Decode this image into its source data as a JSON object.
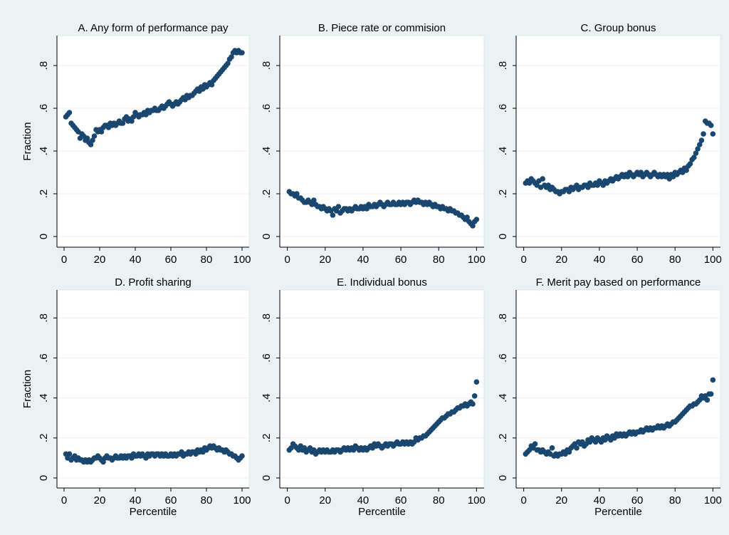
{
  "chart_data": [
    {
      "type": "scatter",
      "title": "A. Any form of performance pay",
      "ylabel": "Fraction",
      "color": "#1a476f",
      "grid": true,
      "xlim": [
        -4,
        104
      ],
      "ylim": [
        -0.05,
        0.94
      ],
      "xticks": [
        0,
        20,
        40,
        60,
        80,
        100
      ],
      "yticks": [
        0,
        {
          "value": 0.2,
          "label": ".2"
        },
        {
          "value": 0.4,
          "label": ".4"
        },
        {
          "value": 0.6,
          "label": ".6"
        },
        {
          "value": 0.8,
          "label": ".8"
        }
      ],
      "x": [
        1,
        2,
        3,
        4,
        5,
        6,
        7,
        8,
        9,
        10,
        11,
        12,
        13,
        14,
        15,
        16,
        17,
        18,
        19,
        20,
        21,
        22,
        23,
        24,
        25,
        26,
        27,
        28,
        29,
        30,
        31,
        32,
        33,
        34,
        35,
        36,
        37,
        38,
        39,
        40,
        41,
        42,
        43,
        44,
        45,
        46,
        47,
        48,
        49,
        50,
        51,
        52,
        53,
        54,
        55,
        56,
        57,
        58,
        59,
        60,
        61,
        62,
        63,
        64,
        65,
        66,
        67,
        68,
        69,
        70,
        71,
        72,
        73,
        74,
        75,
        76,
        77,
        78,
        79,
        80,
        81,
        82,
        83,
        84,
        85,
        86,
        87,
        88,
        89,
        90,
        91,
        92,
        93,
        94,
        95,
        96,
        97,
        98,
        99,
        100
      ],
      "values": [
        0.56,
        0.57,
        0.58,
        0.53,
        0.52,
        0.51,
        0.5,
        0.49,
        0.46,
        0.48,
        0.47,
        0.45,
        0.46,
        0.44,
        0.43,
        0.45,
        0.47,
        0.5,
        0.49,
        0.5,
        0.49,
        0.51,
        0.52,
        0.52,
        0.51,
        0.53,
        0.52,
        0.53,
        0.52,
        0.53,
        0.54,
        0.53,
        0.53,
        0.55,
        0.56,
        0.54,
        0.55,
        0.54,
        0.56,
        0.58,
        0.57,
        0.56,
        0.57,
        0.57,
        0.58,
        0.57,
        0.59,
        0.58,
        0.59,
        0.59,
        0.6,
        0.59,
        0.59,
        0.6,
        0.61,
        0.6,
        0.61,
        0.62,
        0.63,
        0.62,
        0.61,
        0.62,
        0.63,
        0.62,
        0.63,
        0.64,
        0.65,
        0.64,
        0.66,
        0.65,
        0.66,
        0.66,
        0.67,
        0.68,
        0.69,
        0.68,
        0.7,
        0.69,
        0.71,
        0.7,
        0.71,
        0.72,
        0.71,
        0.73,
        0.74,
        0.75,
        0.76,
        0.77,
        0.78,
        0.79,
        0.8,
        0.81,
        0.83,
        0.84,
        0.86,
        0.87,
        0.86,
        0.87,
        0.86,
        0.86
      ]
    },
    {
      "type": "scatter",
      "title": "B. Piece rate or commision",
      "color": "#1a476f",
      "grid": true,
      "xlim": [
        -4,
        104
      ],
      "ylim": [
        -0.05,
        0.94
      ],
      "xticks": [
        0,
        20,
        40,
        60,
        80,
        100
      ],
      "yticks": [
        0,
        {
          "value": 0.2,
          "label": ".2"
        },
        {
          "value": 0.4,
          "label": ".4"
        },
        {
          "value": 0.6,
          "label": ".6"
        },
        {
          "value": 0.8,
          "label": ".8"
        }
      ],
      "x": [
        1,
        2,
        3,
        4,
        5,
        6,
        7,
        8,
        9,
        10,
        11,
        12,
        13,
        14,
        15,
        16,
        17,
        18,
        19,
        20,
        21,
        22,
        23,
        24,
        25,
        26,
        27,
        28,
        29,
        30,
        31,
        32,
        33,
        34,
        35,
        36,
        37,
        38,
        39,
        40,
        41,
        42,
        43,
        44,
        45,
        46,
        47,
        48,
        49,
        50,
        51,
        52,
        53,
        54,
        55,
        56,
        57,
        58,
        59,
        60,
        61,
        62,
        63,
        64,
        65,
        66,
        67,
        68,
        69,
        70,
        71,
        72,
        73,
        74,
        75,
        76,
        77,
        78,
        79,
        80,
        81,
        82,
        83,
        84,
        85,
        86,
        87,
        88,
        89,
        90,
        91,
        92,
        93,
        94,
        95,
        96,
        97,
        98,
        99,
        100
      ],
      "values": [
        0.21,
        0.2,
        0.2,
        0.19,
        0.2,
        0.18,
        0.18,
        0.17,
        0.16,
        0.16,
        0.17,
        0.16,
        0.15,
        0.17,
        0.15,
        0.14,
        0.14,
        0.13,
        0.14,
        0.13,
        0.12,
        0.13,
        0.12,
        0.1,
        0.13,
        0.12,
        0.14,
        0.11,
        0.12,
        0.13,
        0.13,
        0.12,
        0.13,
        0.12,
        0.13,
        0.14,
        0.13,
        0.13,
        0.14,
        0.13,
        0.14,
        0.13,
        0.15,
        0.14,
        0.14,
        0.15,
        0.14,
        0.15,
        0.16,
        0.15,
        0.14,
        0.15,
        0.16,
        0.15,
        0.15,
        0.16,
        0.15,
        0.15,
        0.16,
        0.15,
        0.16,
        0.15,
        0.16,
        0.16,
        0.15,
        0.16,
        0.17,
        0.16,
        0.17,
        0.16,
        0.16,
        0.15,
        0.16,
        0.15,
        0.16,
        0.15,
        0.14,
        0.15,
        0.14,
        0.14,
        0.13,
        0.14,
        0.13,
        0.13,
        0.12,
        0.13,
        0.12,
        0.12,
        0.11,
        0.11,
        0.1,
        0.1,
        0.09,
        0.08,
        0.09,
        0.07,
        0.06,
        0.05,
        0.07,
        0.08
      ]
    },
    {
      "type": "scatter",
      "title": "C. Group bonus",
      "color": "#1a476f",
      "grid": true,
      "xlim": [
        -4,
        104
      ],
      "ylim": [
        -0.05,
        0.94
      ],
      "xticks": [
        0,
        20,
        40,
        60,
        80,
        100
      ],
      "yticks": [
        0,
        {
          "value": 0.2,
          "label": ".2"
        },
        {
          "value": 0.4,
          "label": ".4"
        },
        {
          "value": 0.6,
          "label": ".6"
        },
        {
          "value": 0.8,
          "label": ".8"
        }
      ],
      "x": [
        1,
        2,
        3,
        4,
        5,
        6,
        7,
        8,
        9,
        10,
        11,
        12,
        13,
        14,
        15,
        16,
        17,
        18,
        19,
        20,
        21,
        22,
        23,
        24,
        25,
        26,
        27,
        28,
        29,
        30,
        31,
        32,
        33,
        34,
        35,
        36,
        37,
        38,
        39,
        40,
        41,
        42,
        43,
        44,
        45,
        46,
        47,
        48,
        49,
        50,
        51,
        52,
        53,
        54,
        55,
        56,
        57,
        58,
        59,
        60,
        61,
        62,
        63,
        64,
        65,
        66,
        67,
        68,
        69,
        70,
        71,
        72,
        73,
        74,
        75,
        76,
        77,
        78,
        79,
        80,
        81,
        82,
        83,
        84,
        85,
        86,
        87,
        88,
        89,
        90,
        91,
        92,
        93,
        94,
        95,
        96,
        97,
        98,
        99,
        100
      ],
      "values": [
        0.25,
        0.26,
        0.25,
        0.27,
        0.26,
        0.25,
        0.24,
        0.26,
        0.23,
        0.27,
        0.24,
        0.23,
        0.24,
        0.22,
        0.23,
        0.22,
        0.21,
        0.21,
        0.2,
        0.21,
        0.21,
        0.22,
        0.22,
        0.21,
        0.23,
        0.22,
        0.23,
        0.24,
        0.22,
        0.23,
        0.23,
        0.24,
        0.24,
        0.23,
        0.25,
        0.24,
        0.24,
        0.25,
        0.24,
        0.26,
        0.25,
        0.24,
        0.26,
        0.25,
        0.26,
        0.27,
        0.26,
        0.27,
        0.28,
        0.27,
        0.28,
        0.29,
        0.28,
        0.29,
        0.28,
        0.3,
        0.29,
        0.28,
        0.29,
        0.3,
        0.29,
        0.3,
        0.28,
        0.29,
        0.3,
        0.29,
        0.28,
        0.29,
        0.3,
        0.29,
        0.28,
        0.29,
        0.28,
        0.29,
        0.28,
        0.29,
        0.27,
        0.29,
        0.28,
        0.3,
        0.29,
        0.3,
        0.31,
        0.3,
        0.32,
        0.31,
        0.33,
        0.34,
        0.36,
        0.37,
        0.39,
        0.41,
        0.43,
        0.45,
        0.48,
        0.54,
        0.53,
        0.53,
        0.52,
        0.48
      ]
    },
    {
      "type": "scatter",
      "title": "D. Profit sharing",
      "xlabel": "Percentile",
      "ylabel": "Fraction",
      "color": "#1a476f",
      "grid": true,
      "xlim": [
        -4,
        104
      ],
      "ylim": [
        -0.05,
        0.94
      ],
      "xticks": [
        0,
        20,
        40,
        60,
        80,
        100
      ],
      "yticks": [
        0,
        {
          "value": 0.2,
          "label": ".2"
        },
        {
          "value": 0.4,
          "label": ".4"
        },
        {
          "value": 0.6,
          "label": ".6"
        },
        {
          "value": 0.8,
          "label": ".8"
        }
      ],
      "x": [
        1,
        2,
        3,
        4,
        5,
        6,
        7,
        8,
        9,
        10,
        11,
        12,
        13,
        14,
        15,
        16,
        17,
        18,
        19,
        20,
        21,
        22,
        23,
        24,
        25,
        26,
        27,
        28,
        29,
        30,
        31,
        32,
        33,
        34,
        35,
        36,
        37,
        38,
        39,
        40,
        41,
        42,
        43,
        44,
        45,
        46,
        47,
        48,
        49,
        50,
        51,
        52,
        53,
        54,
        55,
        56,
        57,
        58,
        59,
        60,
        61,
        62,
        63,
        64,
        65,
        66,
        67,
        68,
        69,
        70,
        71,
        72,
        73,
        74,
        75,
        76,
        77,
        78,
        79,
        80,
        81,
        82,
        83,
        84,
        85,
        86,
        87,
        88,
        89,
        90,
        91,
        92,
        93,
        94,
        95,
        96,
        97,
        98,
        99,
        100
      ],
      "values": [
        0.12,
        0.1,
        0.12,
        0.09,
        0.1,
        0.11,
        0.09,
        0.1,
        0.09,
        0.09,
        0.08,
        0.09,
        0.08,
        0.09,
        0.08,
        0.09,
        0.1,
        0.1,
        0.11,
        0.1,
        0.09,
        0.08,
        0.1,
        0.11,
        0.1,
        0.1,
        0.09,
        0.1,
        0.11,
        0.1,
        0.1,
        0.11,
        0.1,
        0.11,
        0.1,
        0.11,
        0.11,
        0.1,
        0.12,
        0.11,
        0.11,
        0.12,
        0.11,
        0.12,
        0.11,
        0.1,
        0.12,
        0.11,
        0.12,
        0.12,
        0.11,
        0.12,
        0.12,
        0.11,
        0.12,
        0.11,
        0.12,
        0.11,
        0.11,
        0.12,
        0.11,
        0.12,
        0.11,
        0.12,
        0.12,
        0.13,
        0.11,
        0.12,
        0.12,
        0.13,
        0.12,
        0.13,
        0.13,
        0.12,
        0.14,
        0.13,
        0.14,
        0.13,
        0.15,
        0.14,
        0.15,
        0.16,
        0.15,
        0.16,
        0.15,
        0.14,
        0.15,
        0.14,
        0.14,
        0.13,
        0.14,
        0.13,
        0.12,
        0.12,
        0.11,
        0.11,
        0.1,
        0.09,
        0.1,
        0.11
      ]
    },
    {
      "type": "scatter",
      "title": "E. Individual bonus",
      "xlabel": "Percentile",
      "color": "#1a476f",
      "grid": true,
      "xlim": [
        -4,
        104
      ],
      "ylim": [
        -0.05,
        0.94
      ],
      "xticks": [
        0,
        20,
        40,
        60,
        80,
        100
      ],
      "yticks": [
        0,
        {
          "value": 0.2,
          "label": ".2"
        },
        {
          "value": 0.4,
          "label": ".4"
        },
        {
          "value": 0.6,
          "label": ".6"
        },
        {
          "value": 0.8,
          "label": ".8"
        }
      ],
      "x": [
        1,
        2,
        3,
        4,
        5,
        6,
        7,
        8,
        9,
        10,
        11,
        12,
        13,
        14,
        15,
        16,
        17,
        18,
        19,
        20,
        21,
        22,
        23,
        24,
        25,
        26,
        27,
        28,
        29,
        30,
        31,
        32,
        33,
        34,
        35,
        36,
        37,
        38,
        39,
        40,
        41,
        42,
        43,
        44,
        45,
        46,
        47,
        48,
        49,
        50,
        51,
        52,
        53,
        54,
        55,
        56,
        57,
        58,
        59,
        60,
        61,
        62,
        63,
        64,
        65,
        66,
        67,
        68,
        69,
        70,
        71,
        72,
        73,
        74,
        75,
        76,
        77,
        78,
        79,
        80,
        81,
        82,
        83,
        84,
        85,
        86,
        87,
        88,
        89,
        90,
        91,
        92,
        93,
        94,
        95,
        96,
        97,
        98,
        99,
        100
      ],
      "values": [
        0.14,
        0.15,
        0.17,
        0.16,
        0.15,
        0.14,
        0.16,
        0.14,
        0.15,
        0.13,
        0.14,
        0.15,
        0.13,
        0.14,
        0.12,
        0.13,
        0.14,
        0.13,
        0.14,
        0.13,
        0.14,
        0.13,
        0.13,
        0.14,
        0.13,
        0.14,
        0.14,
        0.13,
        0.14,
        0.15,
        0.14,
        0.15,
        0.14,
        0.15,
        0.14,
        0.16,
        0.15,
        0.14,
        0.15,
        0.14,
        0.15,
        0.14,
        0.15,
        0.16,
        0.15,
        0.17,
        0.16,
        0.17,
        0.16,
        0.15,
        0.16,
        0.17,
        0.16,
        0.17,
        0.17,
        0.16,
        0.17,
        0.18,
        0.17,
        0.17,
        0.18,
        0.17,
        0.18,
        0.17,
        0.18,
        0.17,
        0.18,
        0.2,
        0.19,
        0.2,
        0.2,
        0.21,
        0.21,
        0.22,
        0.23,
        0.24,
        0.25,
        0.26,
        0.27,
        0.28,
        0.29,
        0.3,
        0.3,
        0.31,
        0.32,
        0.32,
        0.33,
        0.33,
        0.34,
        0.35,
        0.35,
        0.36,
        0.36,
        0.37,
        0.36,
        0.37,
        0.38,
        0.37,
        0.41,
        0.48
      ]
    },
    {
      "type": "scatter",
      "title": "F. Merit pay based on performance",
      "xlabel": "Percentile",
      "color": "#1a476f",
      "grid": true,
      "xlim": [
        -4,
        104
      ],
      "ylim": [
        -0.05,
        0.94
      ],
      "xticks": [
        0,
        20,
        40,
        60,
        80,
        100
      ],
      "yticks": [
        0,
        {
          "value": 0.2,
          "label": ".2"
        },
        {
          "value": 0.4,
          "label": ".4"
        },
        {
          "value": 0.6,
          "label": ".6"
        },
        {
          "value": 0.8,
          "label": ".8"
        }
      ],
      "x": [
        1,
        2,
        3,
        4,
        5,
        6,
        7,
        8,
        9,
        10,
        11,
        12,
        13,
        14,
        15,
        16,
        17,
        18,
        19,
        20,
        21,
        22,
        23,
        24,
        25,
        26,
        27,
        28,
        29,
        30,
        31,
        32,
        33,
        34,
        35,
        36,
        37,
        38,
        39,
        40,
        41,
        42,
        43,
        44,
        45,
        46,
        47,
        48,
        49,
        50,
        51,
        52,
        53,
        54,
        55,
        56,
        57,
        58,
        59,
        60,
        61,
        62,
        63,
        64,
        65,
        66,
        67,
        68,
        69,
        70,
        71,
        72,
        73,
        74,
        75,
        76,
        77,
        78,
        79,
        80,
        81,
        82,
        83,
        84,
        85,
        86,
        87,
        88,
        89,
        90,
        91,
        92,
        93,
        94,
        95,
        96,
        97,
        98,
        99,
        100
      ],
      "values": [
        0.12,
        0.13,
        0.14,
        0.16,
        0.15,
        0.17,
        0.14,
        0.14,
        0.13,
        0.14,
        0.13,
        0.12,
        0.13,
        0.12,
        0.15,
        0.11,
        0.12,
        0.11,
        0.12,
        0.12,
        0.13,
        0.12,
        0.14,
        0.13,
        0.15,
        0.16,
        0.17,
        0.15,
        0.18,
        0.17,
        0.18,
        0.16,
        0.17,
        0.19,
        0.18,
        0.2,
        0.19,
        0.18,
        0.2,
        0.19,
        0.18,
        0.2,
        0.19,
        0.21,
        0.2,
        0.19,
        0.21,
        0.2,
        0.22,
        0.21,
        0.22,
        0.21,
        0.22,
        0.21,
        0.22,
        0.23,
        0.22,
        0.23,
        0.22,
        0.23,
        0.23,
        0.24,
        0.23,
        0.24,
        0.25,
        0.24,
        0.25,
        0.24,
        0.25,
        0.25,
        0.26,
        0.25,
        0.26,
        0.25,
        0.26,
        0.27,
        0.26,
        0.27,
        0.28,
        0.28,
        0.29,
        0.3,
        0.31,
        0.32,
        0.33,
        0.34,
        0.35,
        0.36,
        0.36,
        0.37,
        0.37,
        0.38,
        0.39,
        0.41,
        0.4,
        0.41,
        0.39,
        0.42,
        0.42,
        0.49
      ]
    }
  ]
}
